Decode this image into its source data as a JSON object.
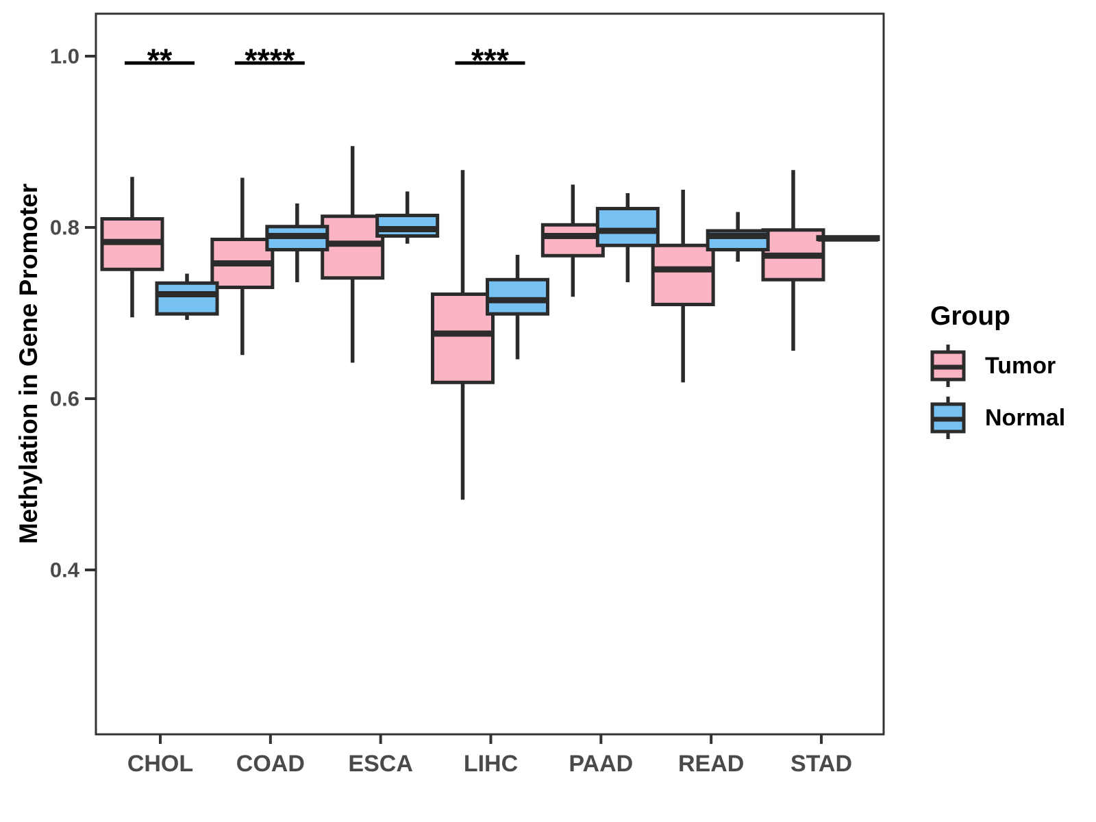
{
  "chart_data": {
    "type": "boxplot",
    "title": "",
    "xlabel": "",
    "ylabel": "Methylation in Gene Promoter",
    "categories": [
      "CHOL",
      "COAD",
      "ESCA",
      "LIHC",
      "PAAD",
      "READ",
      "STAD"
    ],
    "y_ticks": [
      "1.0",
      "0.8",
      "0.6",
      "0.4"
    ],
    "ylim": [
      0.21,
      1.05
    ],
    "grid": false,
    "legend": {
      "title": "Group",
      "position": "right"
    },
    "groups": [
      {
        "name": "Tumor",
        "fill": "#FBB4C4"
      },
      {
        "name": "Normal",
        "fill": "#77C2F3"
      }
    ],
    "series": [
      {
        "name": "Tumor",
        "boxes": [
          {
            "category": "CHOL",
            "low": 0.695,
            "q1": 0.751,
            "median": 0.783,
            "q3": 0.81,
            "high": 0.859
          },
          {
            "category": "COAD",
            "low": 0.651,
            "q1": 0.73,
            "median": 0.758,
            "q3": 0.786,
            "high": 0.858
          },
          {
            "category": "ESCA",
            "low": 0.642,
            "q1": 0.741,
            "median": 0.781,
            "q3": 0.813,
            "high": 0.895
          },
          {
            "category": "LIHC",
            "low": 0.482,
            "q1": 0.619,
            "median": 0.676,
            "q3": 0.722,
            "high": 0.867
          },
          {
            "category": "PAAD",
            "low": 0.719,
            "q1": 0.767,
            "median": 0.79,
            "q3": 0.803,
            "high": 0.85
          },
          {
            "category": "READ",
            "low": 0.619,
            "q1": 0.71,
            "median": 0.751,
            "q3": 0.779,
            "high": 0.844
          },
          {
            "category": "STAD",
            "low": 0.656,
            "q1": 0.739,
            "median": 0.767,
            "q3": 0.797,
            "high": 0.867
          }
        ]
      },
      {
        "name": "Normal",
        "boxes": [
          {
            "category": "CHOL",
            "low": 0.692,
            "q1": 0.699,
            "median": 0.722,
            "q3": 0.735,
            "high": 0.746
          },
          {
            "category": "COAD",
            "low": 0.736,
            "q1": 0.774,
            "median": 0.79,
            "q3": 0.801,
            "high": 0.828
          },
          {
            "category": "ESCA",
            "low": 0.781,
            "q1": 0.79,
            "median": 0.798,
            "q3": 0.814,
            "high": 0.842
          },
          {
            "category": "LIHC",
            "low": 0.646,
            "q1": 0.699,
            "median": 0.715,
            "q3": 0.739,
            "high": 0.768
          },
          {
            "category": "PAAD",
            "low": 0.736,
            "q1": 0.779,
            "median": 0.796,
            "q3": 0.822,
            "high": 0.84
          },
          {
            "category": "READ",
            "low": 0.76,
            "q1": 0.774,
            "median": 0.79,
            "q3": 0.796,
            "high": 0.818
          },
          {
            "category": "STAD",
            "low": 0.784,
            "q1": 0.786,
            "median": 0.787,
            "q3": 0.789,
            "high": 0.79
          }
        ]
      }
    ],
    "significance": [
      {
        "category": "CHOL",
        "label": "**"
      },
      {
        "category": "COAD",
        "label": "****"
      },
      {
        "category": "LIHC",
        "label": "***"
      }
    ],
    "colors": {
      "box_border": "#2B2B2B",
      "axis_text": "#4A4A4A",
      "axis_line": "#333333",
      "annotation": "#000000"
    }
  }
}
